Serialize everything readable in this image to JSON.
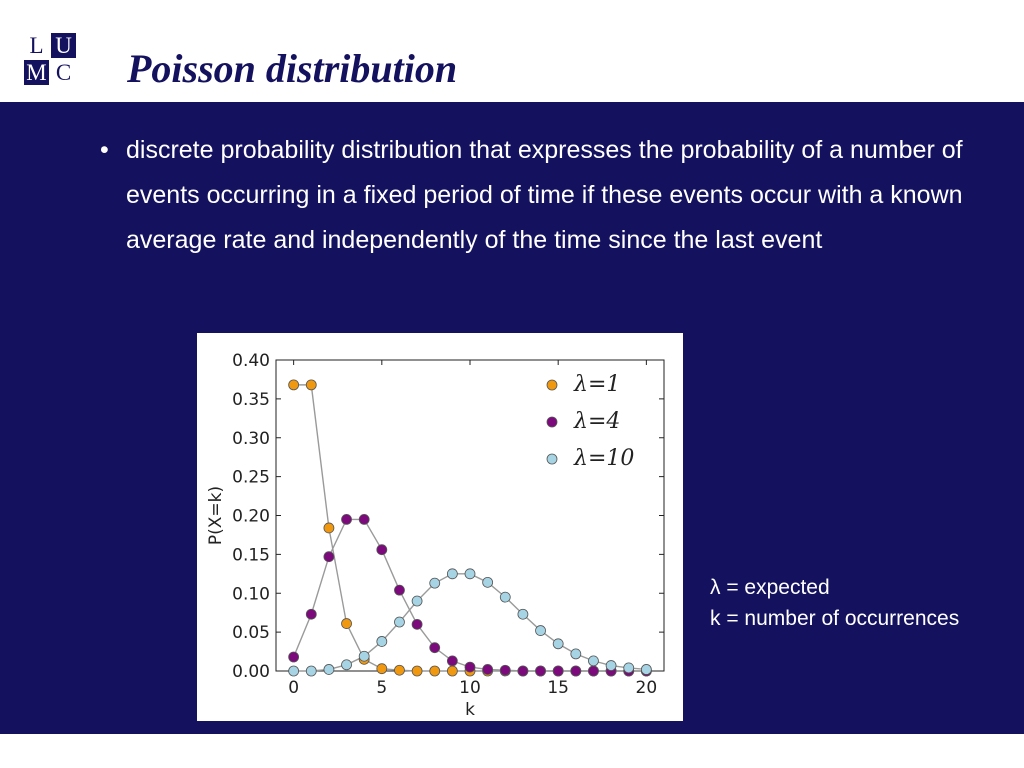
{
  "logo": {
    "letters": [
      "L",
      "U",
      "M",
      "C"
    ]
  },
  "slide": {
    "title": "Poisson distribution",
    "bullet_marker": "•",
    "bullet_text": "discrete probability distribution that expresses the probability of a number of events occurring in a fixed period of time if these events occur with a known average rate and independently of the time since the last event",
    "notes": [
      "λ = expected",
      "k = number of occurrences"
    ]
  },
  "colors": {
    "brand_navy": "#14115e",
    "series_lambda1": "#f0980f",
    "series_lambda4": "#7d0a7d",
    "series_lambda10": "#a7d4e4"
  },
  "chart_data": {
    "type": "scatter",
    "xlabel": "k",
    "ylabel": "P(X=k)",
    "xlim": [
      -1,
      21
    ],
    "ylim": [
      0,
      0.4
    ],
    "xticks": [
      0,
      5,
      10,
      15,
      20
    ],
    "yticks": [
      0.0,
      0.05,
      0.1,
      0.15,
      0.2,
      0.25,
      0.3,
      0.35,
      0.4
    ],
    "ytick_labels": [
      "0.00",
      "0.05",
      "0.10",
      "0.15",
      "0.20",
      "0.25",
      "0.30",
      "0.35",
      "0.40"
    ],
    "legend_position": "top-right",
    "connecting_lines": true,
    "x": [
      0,
      1,
      2,
      3,
      4,
      5,
      6,
      7,
      8,
      9,
      10,
      11,
      12,
      13,
      14,
      15,
      16,
      17,
      18,
      19,
      20
    ],
    "series": [
      {
        "name": "λ=1",
        "color": "#f0980f",
        "values": [
          0.368,
          0.368,
          0.184,
          0.061,
          0.015,
          0.003,
          0.001,
          0.0,
          0.0,
          0.0,
          0.0,
          0.0,
          0.0,
          0.0,
          0.0,
          0.0,
          0.0,
          0.0,
          0.0,
          0.0,
          0.0
        ]
      },
      {
        "name": "λ=4",
        "color": "#7d0a7d",
        "values": [
          0.018,
          0.073,
          0.147,
          0.195,
          0.195,
          0.156,
          0.104,
          0.06,
          0.03,
          0.013,
          0.005,
          0.002,
          0.001,
          0.0,
          0.0,
          0.0,
          0.0,
          0.0,
          0.0,
          0.0,
          0.0
        ]
      },
      {
        "name": "λ=10",
        "color": "#a7d4e4",
        "values": [
          0.0,
          0.0,
          0.002,
          0.008,
          0.019,
          0.038,
          0.063,
          0.09,
          0.113,
          0.125,
          0.125,
          0.114,
          0.095,
          0.073,
          0.052,
          0.035,
          0.022,
          0.013,
          0.007,
          0.004,
          0.002
        ]
      }
    ]
  }
}
